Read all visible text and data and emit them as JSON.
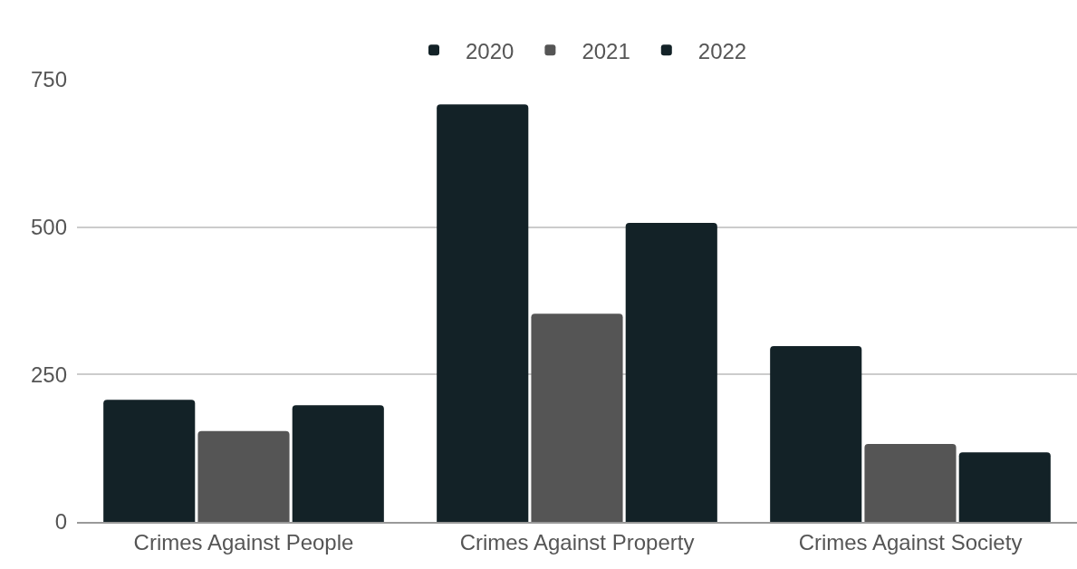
{
  "chart_data": {
    "type": "bar",
    "categories": [
      "Crimes Against People",
      "Crimes Against Property",
      "Crimes Against Society"
    ],
    "series": [
      {
        "name": "2020",
        "color": "#132227",
        "values": [
          207,
          708,
          298
        ]
      },
      {
        "name": "2021",
        "color": "#555555",
        "values": [
          154,
          353,
          132
        ]
      },
      {
        "name": "2022",
        "color": "#132227",
        "values": [
          198,
          507,
          118
        ]
      }
    ],
    "ylim": [
      0,
      750
    ],
    "yticks": [
      0,
      250,
      500,
      750
    ],
    "grid": "y",
    "legend": "top"
  }
}
